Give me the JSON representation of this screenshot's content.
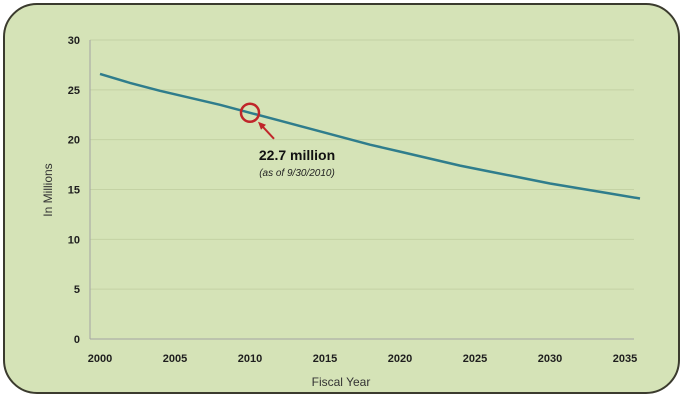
{
  "chart_data": {
    "type": "line",
    "title": "",
    "xlabel": "Fiscal Year",
    "ylabel": "In Millions",
    "xlim": [
      2000,
      2036
    ],
    "ylim": [
      0,
      30
    ],
    "x_ticks": [
      2000,
      2005,
      2010,
      2015,
      2020,
      2025,
      2030,
      2035
    ],
    "y_ticks": [
      0,
      5,
      10,
      15,
      20,
      25,
      30
    ],
    "grid": true,
    "legend": "none",
    "series": [
      {
        "x": [
          2000,
          2002,
          2004,
          2006,
          2008,
          2010,
          2012,
          2014,
          2016,
          2018,
          2020,
          2022,
          2024,
          2026,
          2028,
          2030,
          2032,
          2034,
          2036
        ],
        "values": [
          26.6,
          25.7,
          24.9,
          24.2,
          23.5,
          22.7,
          21.9,
          21.1,
          20.3,
          19.5,
          18.8,
          18.1,
          17.4,
          16.8,
          16.2,
          15.6,
          15.1,
          14.6,
          14.1
        ],
        "color": "#2f7d8c"
      }
    ],
    "annotation": {
      "x": 2010,
      "y": 22.7,
      "label": "22.7 million",
      "sublabel": "(as of 9/30/2010)",
      "marker_color": "#c0262a"
    }
  }
}
